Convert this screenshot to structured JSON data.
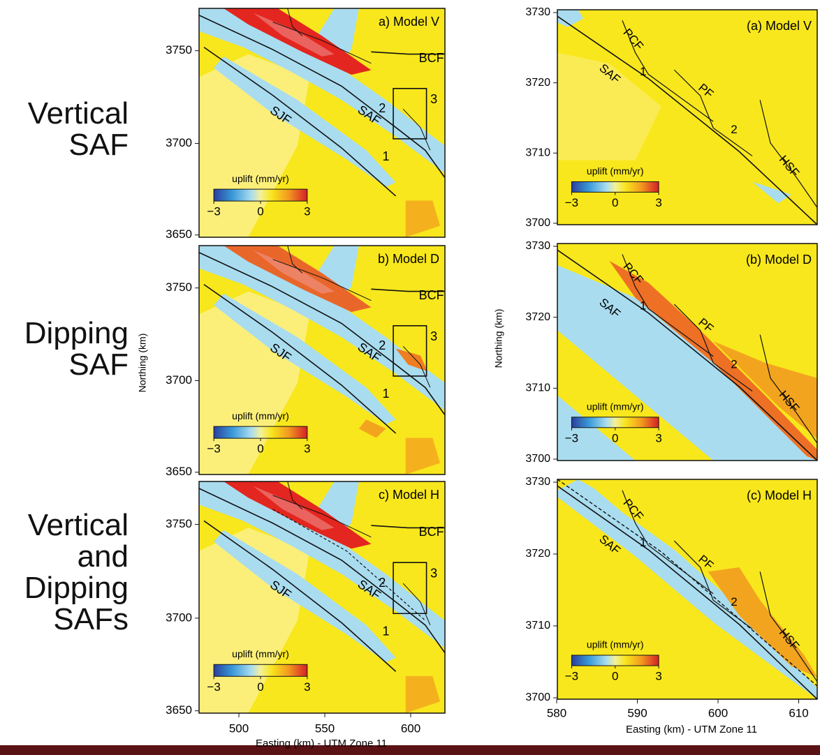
{
  "row_labels": [
    [
      "Vertical",
      "SAF"
    ],
    [
      "Dipping",
      "SAF"
    ],
    [
      "Vertical",
      "and",
      "Dipping",
      "SAFs"
    ]
  ],
  "left_axes": {
    "ylabel": "Northing (km)",
    "xlabel": "Easting (km) - UTM Zone 11",
    "xticks": [
      500,
      550,
      600
    ]
  },
  "left_panels": [
    {
      "title": "a) Model V",
      "labels": {
        "bcf": "BCF",
        "saf": "SAF",
        "sjf": "SJF",
        "n1": "1",
        "n2": "2",
        "n3": "3"
      },
      "colorbar": {
        "label": "uplift (mm/yr)",
        "ticks": [
          "−3",
          "0",
          "3"
        ]
      },
      "yticks": [
        3750,
        3700,
        3650
      ]
    },
    {
      "title": "b) Model D",
      "labels": {
        "bcf": "BCF",
        "saf": "SAF",
        "sjf": "SJF",
        "n1": "1",
        "n2": "2",
        "n3": "3"
      },
      "colorbar": {
        "label": "uplift (mm/yr)",
        "ticks": [
          "−3",
          "0",
          "3"
        ]
      },
      "yticks": [
        3750,
        3700,
        3650
      ]
    },
    {
      "title": "c) Model H",
      "labels": {
        "bcf": "BCF",
        "saf": "SAF",
        "sjf": "SJF",
        "n1": "1",
        "n2": "2",
        "n3": "3"
      },
      "colorbar": {
        "label": "uplift (mm/yr)",
        "ticks": [
          "−3",
          "0",
          "3"
        ]
      },
      "yticks": [
        3750,
        3700,
        3650
      ]
    }
  ],
  "right_axes": {
    "ylabel": "Northing (km)",
    "xlabel": "Easting (km) - UTM Zone 11",
    "xticks": [
      580,
      590,
      600,
      610
    ]
  },
  "right_panels": [
    {
      "title": "(a) Model V",
      "labels": {
        "pcf": "PCF",
        "saf": "SAF",
        "pf": "PF",
        "hsf": "HSF",
        "n1": "1",
        "n2": "2"
      },
      "colorbar": {
        "label": "uplift (mm/yr)",
        "ticks": [
          "−3",
          "0",
          "3"
        ]
      },
      "yticks": [
        3730,
        3720,
        3710,
        3700
      ]
    },
    {
      "title": "(b) Model D",
      "labels": {
        "pcf": "PCF",
        "saf": "SAF",
        "pf": "PF",
        "hsf": "HSF",
        "n1": "1",
        "n2": "2"
      },
      "colorbar": {
        "label": "uplift (mm/yr)",
        "ticks": [
          "−3",
          "0",
          "3"
        ]
      },
      "yticks": [
        3730,
        3720,
        3710,
        3700
      ]
    },
    {
      "title": "(c) Model H",
      "labels": {
        "pcf": "PCF",
        "saf": "SAF",
        "pf": "PF",
        "hsf": "HSF",
        "n1": "1",
        "n2": "2"
      },
      "colorbar": {
        "label": "uplift (mm/yr)",
        "ticks": [
          "−3",
          "0",
          "3"
        ]
      },
      "yticks": [
        3730,
        3720,
        3710,
        3700
      ]
    }
  ]
}
